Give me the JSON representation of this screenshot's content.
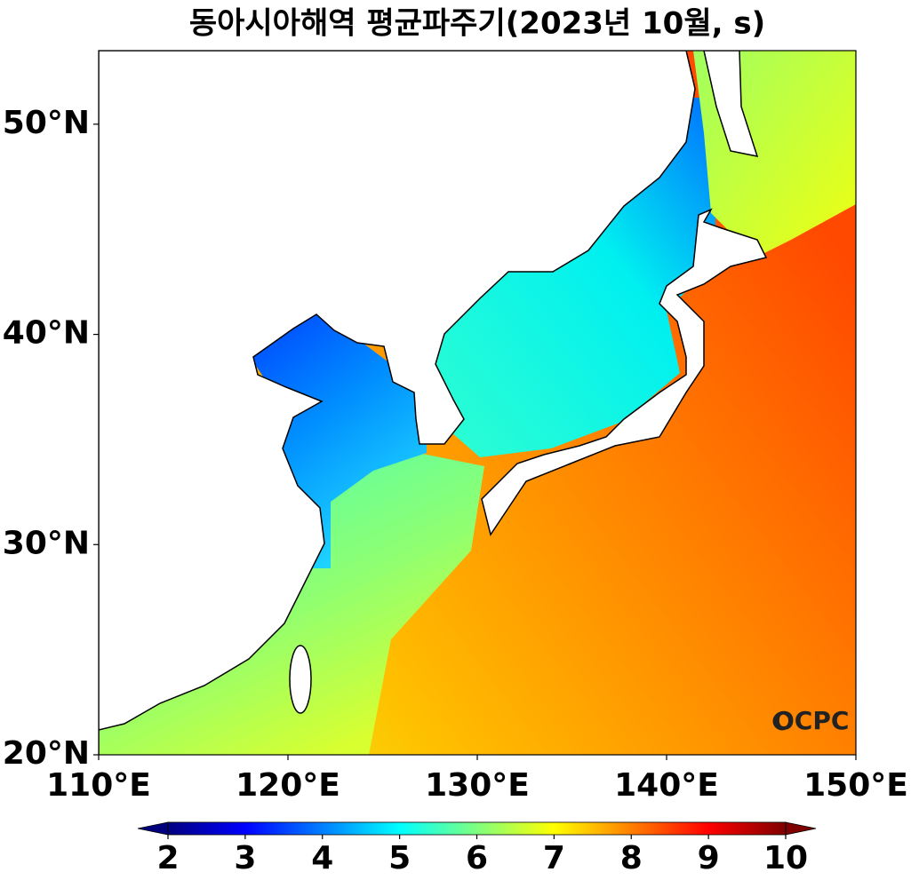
{
  "chart_data": {
    "type": "map",
    "title": "동아시아해역 평균파주기(2023년 10월, s)",
    "xlim": [
      110,
      150
    ],
    "ylim": [
      20,
      53.5
    ],
    "xticks": [
      {
        "value": 110,
        "label": "110°E"
      },
      {
        "value": 120,
        "label": "120°E"
      },
      {
        "value": 130,
        "label": "130°E"
      },
      {
        "value": 140,
        "label": "140°E"
      },
      {
        "value": 150,
        "label": "150°E"
      }
    ],
    "yticks": [
      {
        "value": 20,
        "label": "20°N"
      },
      {
        "value": 30,
        "label": "30°N"
      },
      {
        "value": 40,
        "label": "40°N"
      },
      {
        "value": 50,
        "label": "50°N"
      }
    ],
    "colorbar": {
      "colormap": "jet",
      "lim": [
        2,
        10
      ],
      "ticks": [
        2,
        3,
        4,
        5,
        6,
        7,
        8,
        9,
        10
      ],
      "extend": "both"
    },
    "logo": "OCPC"
  }
}
